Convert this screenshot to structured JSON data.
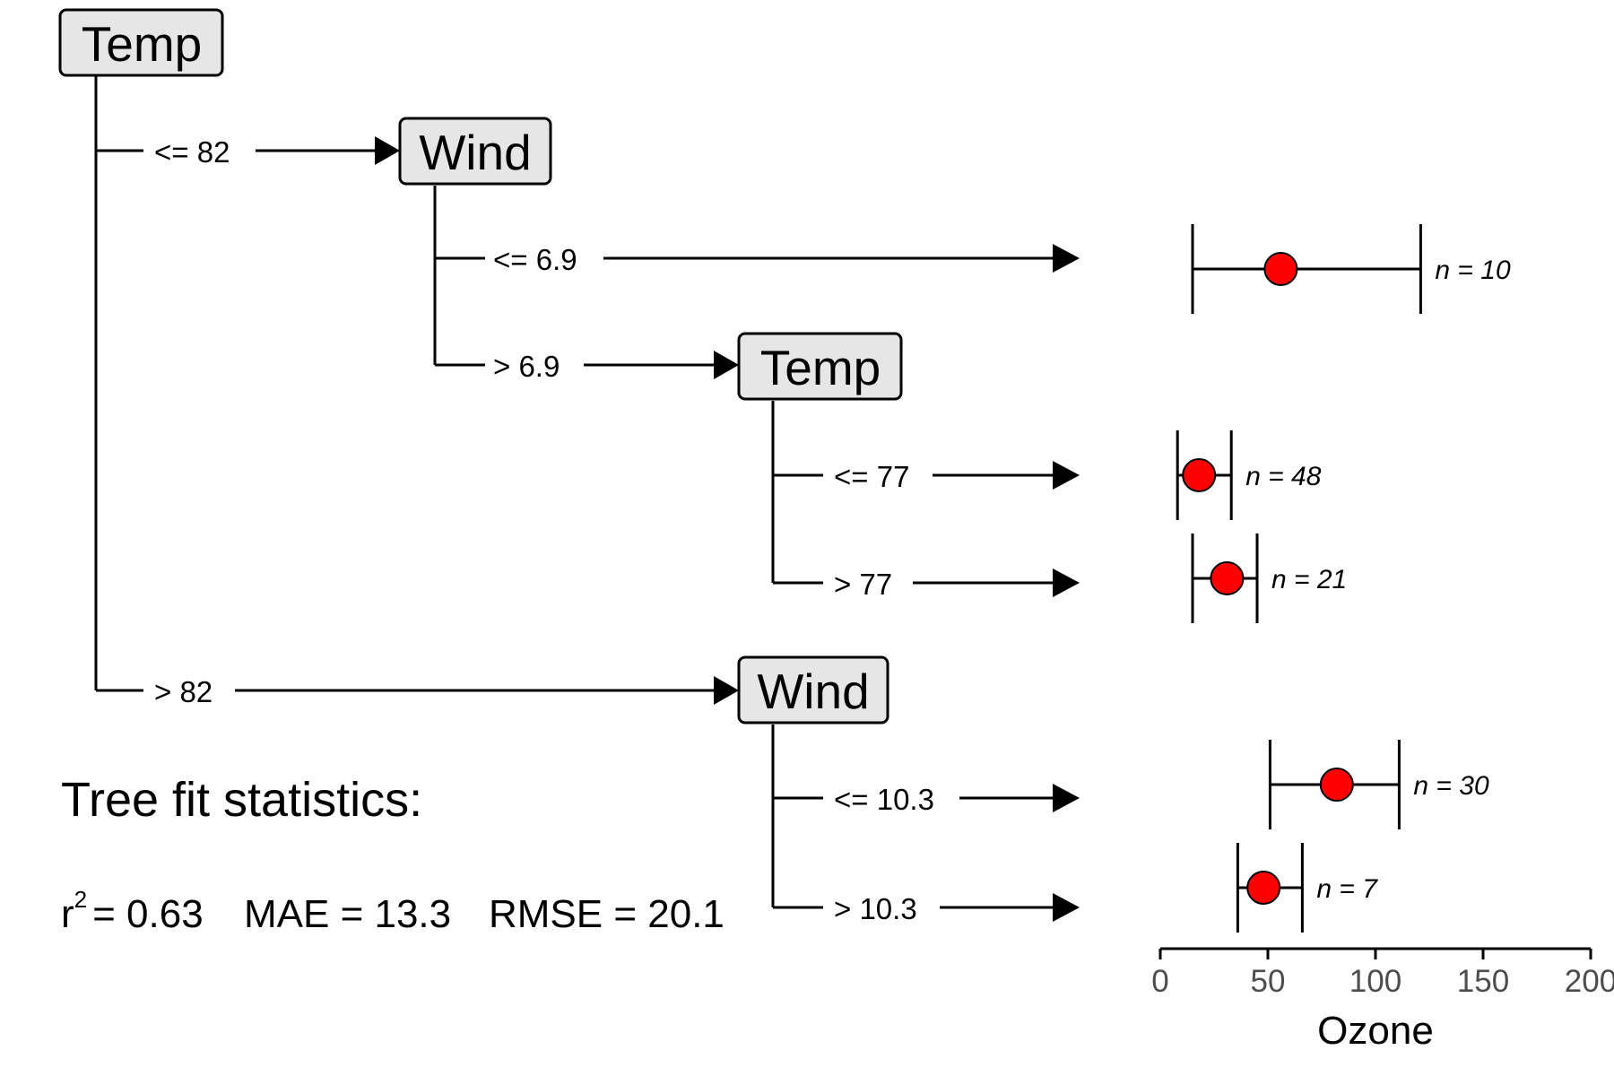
{
  "tree": {
    "nodes": [
      {
        "id": "root",
        "label": "Temp"
      },
      {
        "id": "n2",
        "label": "Wind"
      },
      {
        "id": "n4",
        "label": "Temp"
      },
      {
        "id": "n7",
        "label": "Wind"
      }
    ],
    "edges": [
      {
        "from": "root",
        "to": "n2",
        "label": "<= 82"
      },
      {
        "from": "root",
        "to": "n7",
        "label": "> 82"
      },
      {
        "from": "n2",
        "to": "leaf1",
        "label": "<= 6.9"
      },
      {
        "from": "n2",
        "to": "n4",
        "label": "> 6.9"
      },
      {
        "from": "n4",
        "to": "leaf2",
        "label": "<= 77"
      },
      {
        "from": "n4",
        "to": "leaf3",
        "label": "> 77"
      },
      {
        "from": "n7",
        "to": "leaf4",
        "label": "<= 10.3"
      },
      {
        "from": "n7",
        "to": "leaf5",
        "label": "> 10.3"
      }
    ]
  },
  "chart_data": {
    "type": "scatter",
    "xlabel": "Ozone",
    "xlim": [
      0,
      200
    ],
    "xticks": [
      0,
      50,
      100,
      150,
      200
    ],
    "xtick_labels": [
      "0",
      "50",
      "100",
      "150",
      "200"
    ],
    "leaves": [
      {
        "id": "leaf1",
        "mean": 56,
        "lower": 15,
        "upper": 121,
        "n_label": "n = 10"
      },
      {
        "id": "leaf2",
        "mean": 18,
        "lower": 8,
        "upper": 33,
        "n_label": "n = 48"
      },
      {
        "id": "leaf3",
        "mean": 31,
        "lower": 15,
        "upper": 45,
        "n_label": "n = 21"
      },
      {
        "id": "leaf4",
        "mean": 82,
        "lower": 51,
        "upper": 111,
        "n_label": "n = 30"
      },
      {
        "id": "leaf5",
        "mean": 48,
        "lower": 36,
        "upper": 66,
        "n_label": "n = 7"
      }
    ]
  },
  "stats": {
    "title": "Tree fit statistics:",
    "r_base": "r",
    "r_sup": "2",
    "r2": "= 0.63",
    "mae": "MAE = 13.3",
    "rmse": "RMSE = 20.1"
  }
}
